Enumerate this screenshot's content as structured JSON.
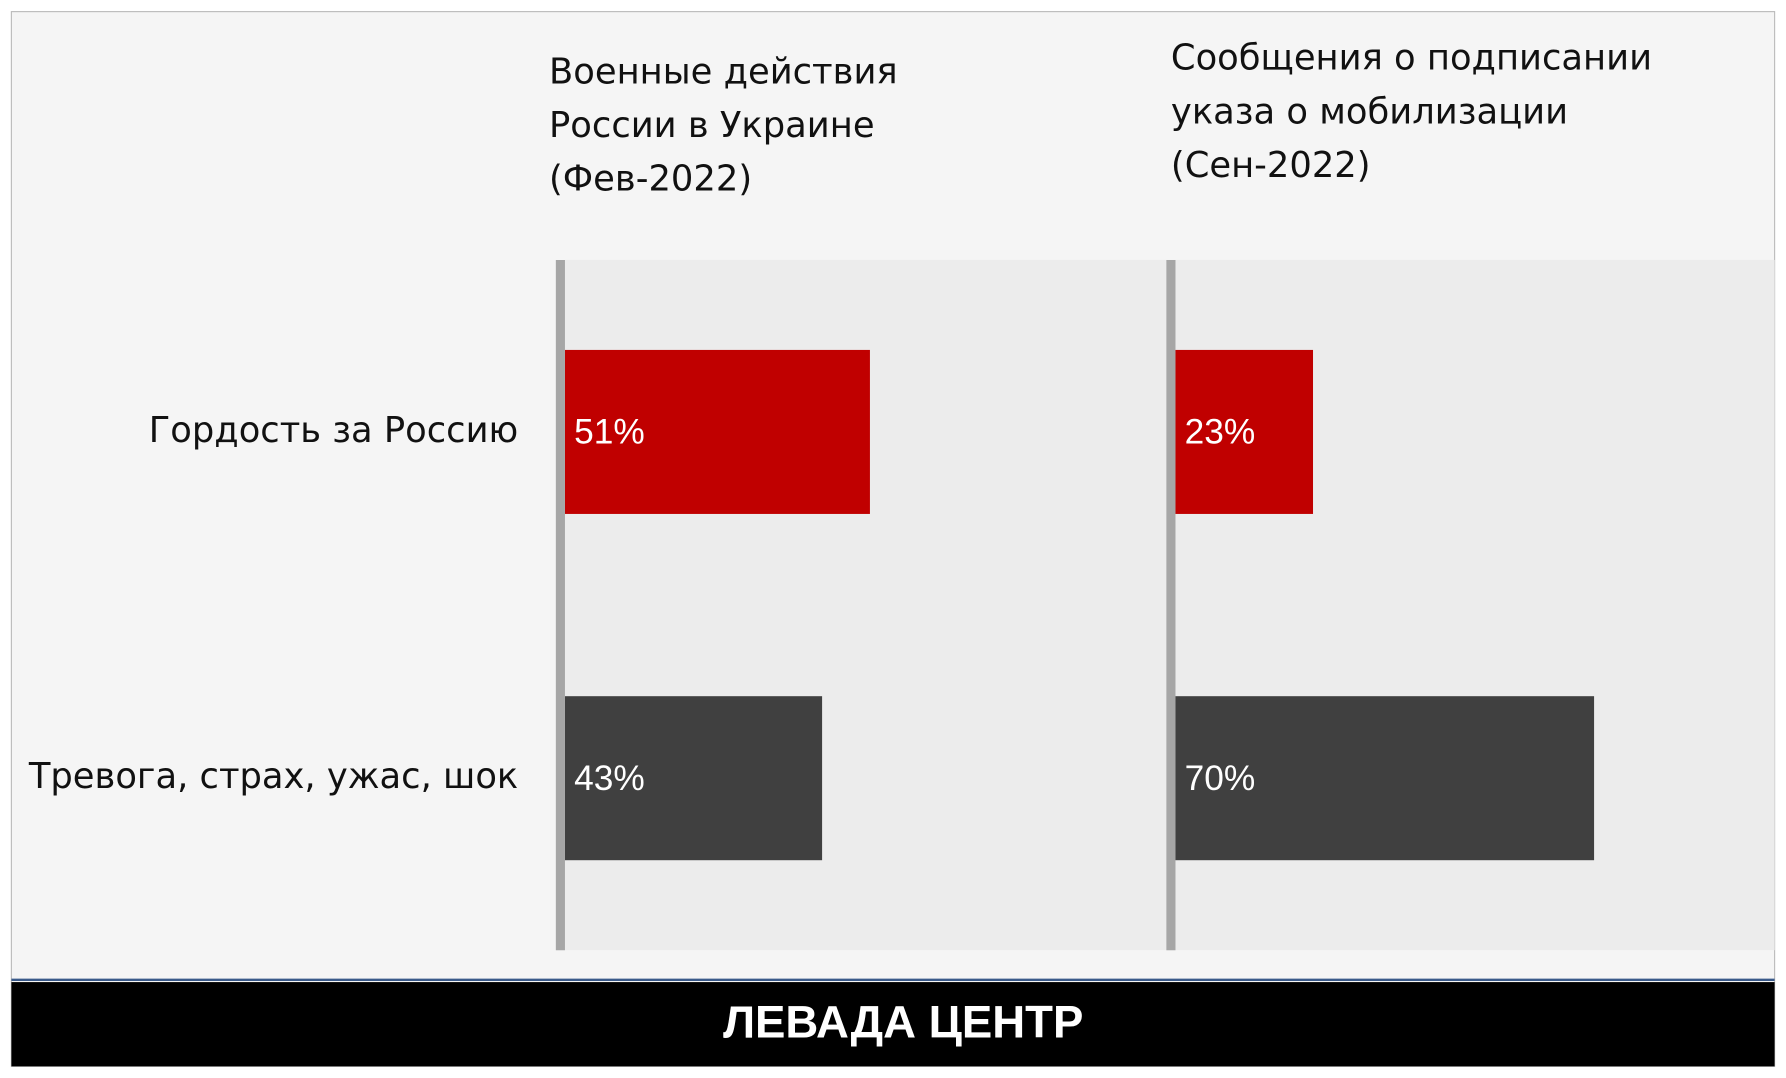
{
  "chart_data": {
    "type": "bar",
    "categories": [
      "Гордость за Россию",
      "Тревога, страх, ужас, шок"
    ],
    "colors": [
      "#c00000",
      "#404040"
    ],
    "xlim": [
      0,
      100
    ],
    "panels": [
      {
        "title": "Военные действия России в Украине (Фев-2022)",
        "values": [
          51,
          43
        ],
        "value_labels": [
          "51%",
          "43%"
        ]
      },
      {
        "title": "Сообщения о подписании указа о мобилизации (Сен-2022)",
        "values": [
          23,
          70
        ],
        "value_labels": [
          "23%",
          "70%"
        ]
      }
    ]
  },
  "footer": {
    "text": "ЛЕВАДА ЦЕНТР"
  }
}
